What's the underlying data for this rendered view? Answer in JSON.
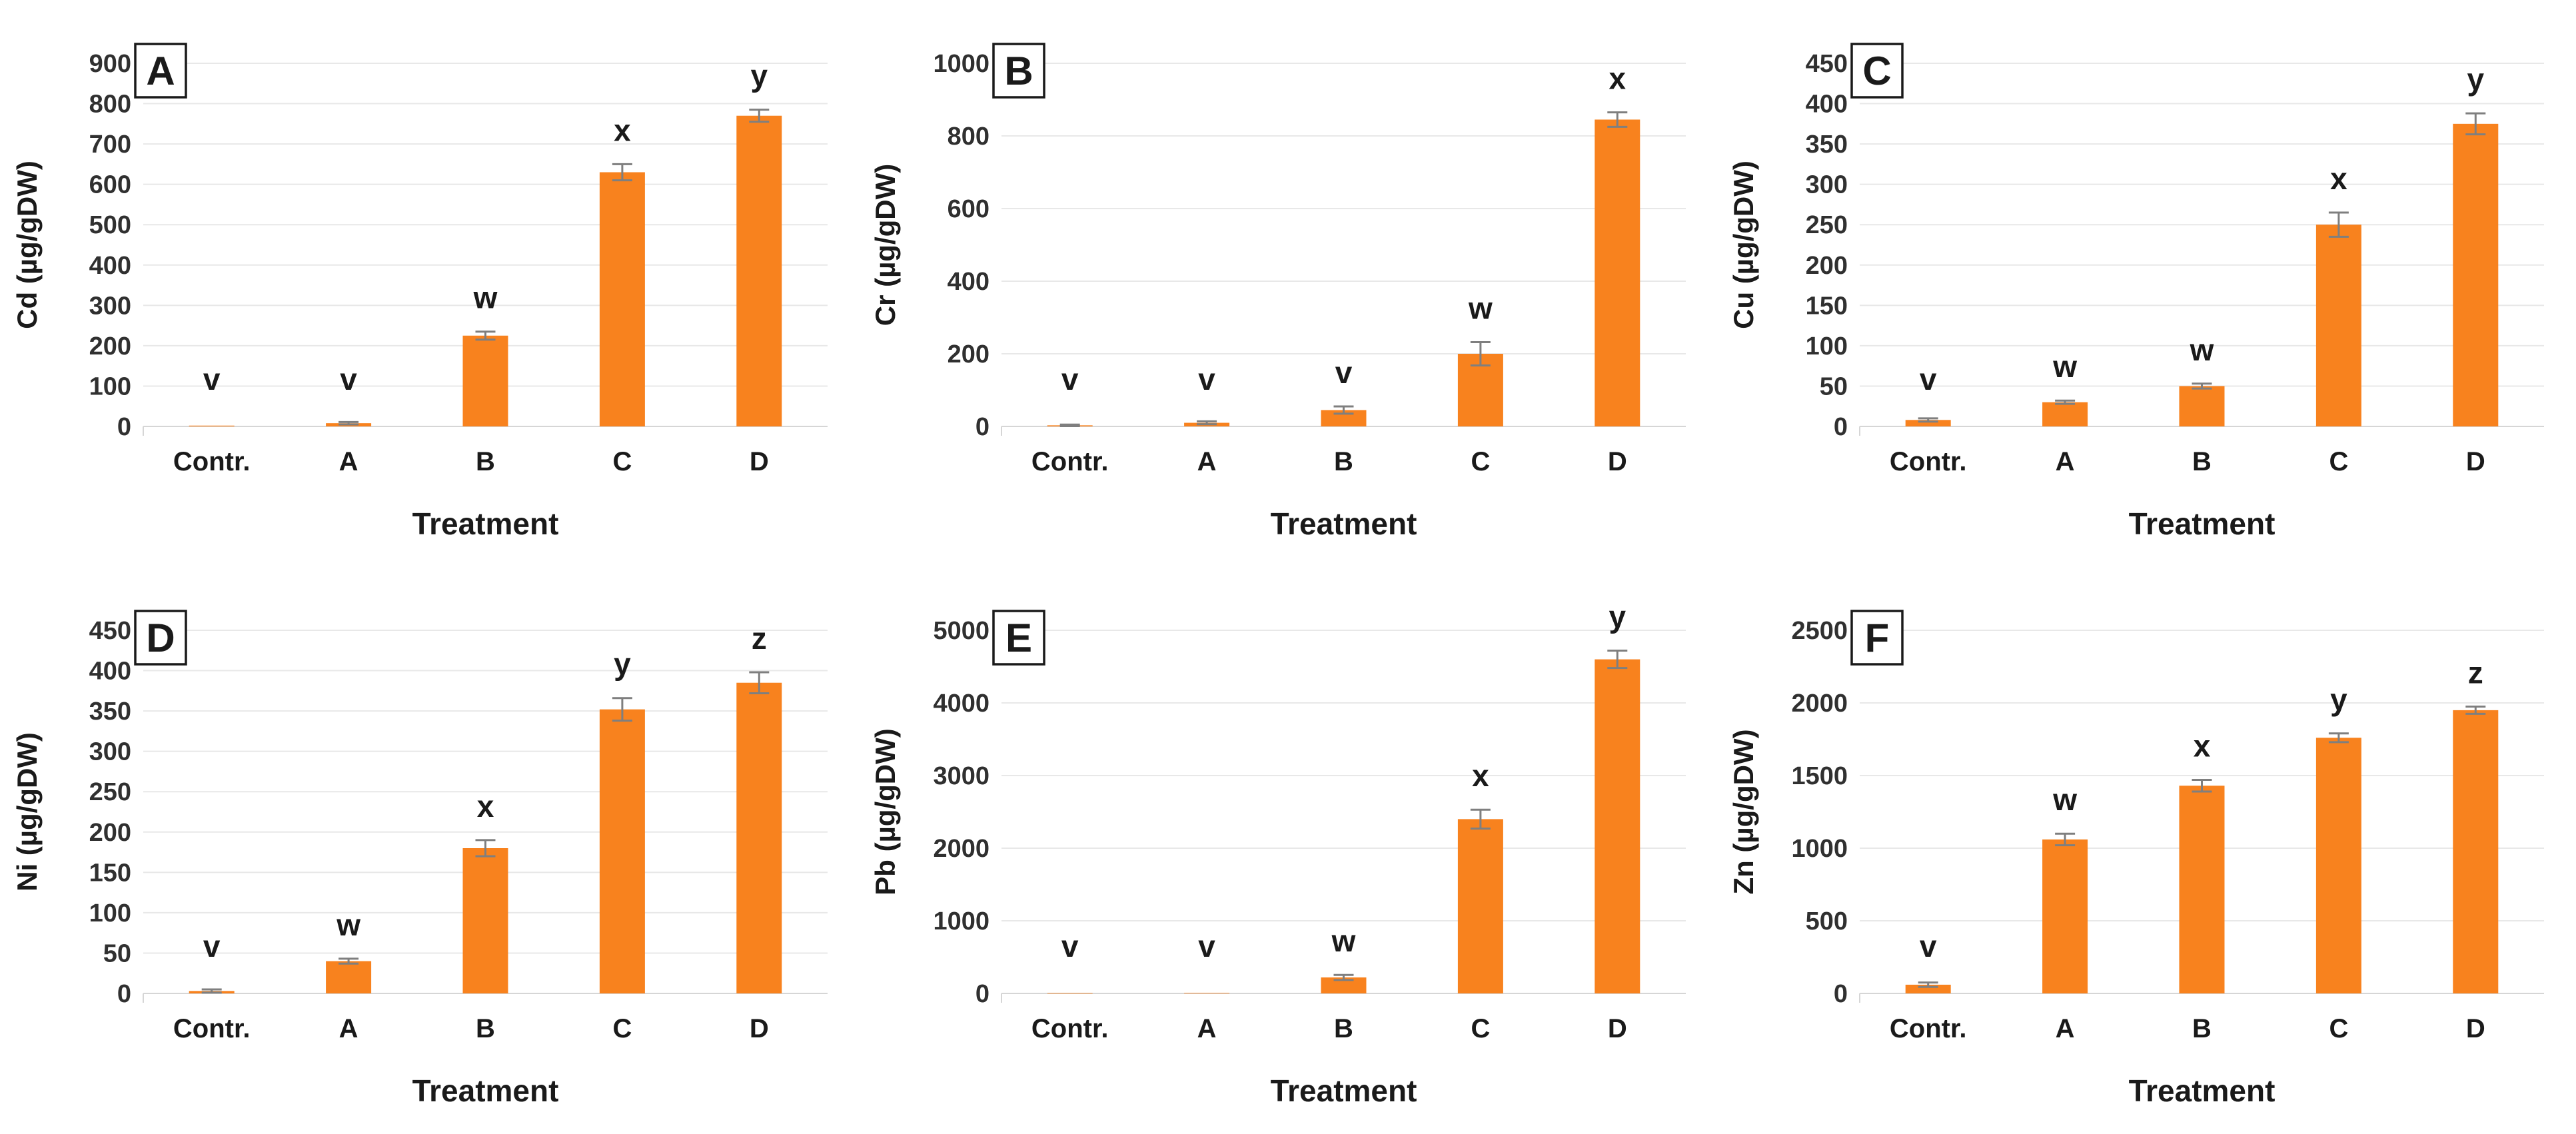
{
  "figure": {
    "description": "Six-panel bar chart figure of heavy metal concentrations by treatment",
    "xlabel": "Treatment",
    "categories": [
      "Contr.",
      "A",
      "B",
      "C",
      "D"
    ]
  },
  "style": {
    "bar_color": "#F8821E",
    "grid_color": "#E8E8E8",
    "baseline_color": "#D6D6D6",
    "error_bar_color": "#7F7F7F",
    "tick_label_color": "#303030",
    "text_color": "#1A1A1A",
    "panel_box_border_color": "#1A1A1A",
    "background_color": "#FFFFFF"
  },
  "chart_data": [
    {
      "type": "bar",
      "panel_letter": "A",
      "title": "",
      "ylabel": "Cd (µg/gDW)",
      "xlabel": "Treatment",
      "categories": [
        "Contr.",
        "A",
        "B",
        "C",
        "D"
      ],
      "values": [
        2,
        8,
        225,
        630,
        770
      ],
      "errors": [
        0,
        3,
        10,
        20,
        15
      ],
      "sig_letters": [
        "v",
        "v",
        "w",
        "x",
        "y"
      ],
      "ylim": [
        0,
        900
      ],
      "ytick_step": 100,
      "grid": true,
      "legend": "none"
    },
    {
      "type": "bar",
      "panel_letter": "B",
      "title": "",
      "ylabel": "Cr (µg/gDW)",
      "xlabel": "Treatment",
      "categories": [
        "Contr.",
        "A",
        "B",
        "C",
        "D"
      ],
      "values": [
        3,
        10,
        45,
        200,
        845
      ],
      "errors": [
        2,
        4,
        10,
        32,
        20
      ],
      "sig_letters": [
        "v",
        "v",
        "v",
        "w",
        "x"
      ],
      "ylim": [
        0,
        1000
      ],
      "ytick_step": 200,
      "grid": true,
      "legend": "none"
    },
    {
      "type": "bar",
      "panel_letter": "C",
      "title": "",
      "ylabel": "Cu (µg/gDW)",
      "xlabel": "Treatment",
      "categories": [
        "Contr.",
        "A",
        "B",
        "C",
        "D"
      ],
      "values": [
        8,
        30,
        50,
        250,
        375
      ],
      "errors": [
        2,
        2,
        3,
        15,
        13
      ],
      "sig_letters": [
        "v",
        "w",
        "w",
        "x",
        "y"
      ],
      "ylim": [
        0,
        450
      ],
      "ytick_step": 50,
      "grid": true,
      "legend": "none"
    },
    {
      "type": "bar",
      "panel_letter": "D",
      "title": "",
      "ylabel": "Ni (µg/gDW)",
      "xlabel": "Treatment",
      "categories": [
        "Contr.",
        "A",
        "B",
        "C",
        "D"
      ],
      "values": [
        3,
        40,
        180,
        352,
        385
      ],
      "errors": [
        2,
        3,
        10,
        14,
        13
      ],
      "sig_letters": [
        "v",
        "w",
        "x",
        "y",
        "z"
      ],
      "ylim": [
        0,
        450
      ],
      "ytick_step": 50,
      "grid": true,
      "legend": "none"
    },
    {
      "type": "bar",
      "panel_letter": "E",
      "title": "",
      "ylabel": "Pb (µg/gDW)",
      "xlabel": "Treatment",
      "categories": [
        "Contr.",
        "A",
        "B",
        "C",
        "D"
      ],
      "values": [
        5,
        8,
        220,
        2400,
        4600
      ],
      "errors": [
        0,
        0,
        35,
        130,
        120
      ],
      "sig_letters": [
        "v",
        "v",
        "w",
        "x",
        "y"
      ],
      "ylim": [
        0,
        5000
      ],
      "ytick_step": 1000,
      "grid": true,
      "legend": "none"
    },
    {
      "type": "bar",
      "panel_letter": "F",
      "title": "",
      "ylabel": "Zn (µg/gDW)",
      "xlabel": "Treatment",
      "categories": [
        "Contr.",
        "A",
        "B",
        "C",
        "D"
      ],
      "values": [
        60,
        1060,
        1430,
        1760,
        1950
      ],
      "errors": [
        15,
        40,
        40,
        30,
        25
      ],
      "sig_letters": [
        "v",
        "w",
        "x",
        "y",
        "z"
      ],
      "ylim": [
        0,
        2500
      ],
      "ytick_step": 500,
      "grid": true,
      "legend": "none"
    }
  ]
}
